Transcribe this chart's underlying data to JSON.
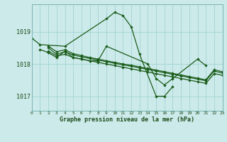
{
  "hours": [
    0,
    1,
    2,
    3,
    4,
    5,
    6,
    7,
    8,
    9,
    10,
    11,
    12,
    13,
    14,
    15,
    16,
    17,
    18,
    19,
    20,
    21,
    22,
    23
  ],
  "line1": [
    1018.8,
    1018.6,
    null,
    null,
    1018.55,
    null,
    null,
    null,
    null,
    1019.4,
    1019.6,
    1019.5,
    1019.15,
    1018.3,
    null,
    1017.0,
    1017.0,
    1017.3,
    null,
    null,
    null,
    null,
    null,
    null
  ],
  "line2": [
    null,
    1018.45,
    1018.35,
    1018.2,
    1018.4,
    1018.2,
    1018.15,
    1018.1,
    1018.1,
    1018.55,
    null,
    null,
    null,
    null,
    1018.0,
    1017.55,
    1017.35,
    1017.55,
    null,
    null,
    1018.15,
    1017.95,
    null,
    null
  ],
  "line3": [
    null,
    null,
    1018.4,
    1018.25,
    1018.3,
    1018.2,
    1018.15,
    1018.1,
    1018.05,
    1018.0,
    1017.95,
    1017.9,
    1017.85,
    1017.8,
    1017.75,
    1017.7,
    1017.65,
    1017.6,
    1017.55,
    1017.5,
    1017.45,
    1017.4,
    1017.7,
    1017.65
  ],
  "line4": [
    null,
    null,
    1018.5,
    1018.3,
    1018.38,
    1018.28,
    1018.22,
    1018.17,
    1018.12,
    1018.07,
    1018.02,
    1017.97,
    1017.93,
    1017.88,
    1017.83,
    1017.78,
    1017.73,
    1017.68,
    1017.63,
    1017.58,
    1017.53,
    1017.48,
    1017.78,
    1017.72
  ],
  "line5": [
    null,
    null,
    1018.55,
    1018.38,
    1018.44,
    1018.32,
    1018.26,
    1018.2,
    1018.15,
    1018.1,
    1018.05,
    1018.0,
    1017.96,
    1017.91,
    1017.86,
    1017.81,
    1017.76,
    1017.71,
    1017.66,
    1017.61,
    1017.56,
    1017.51,
    1017.82,
    1017.76
  ],
  "line_color": "#1a5c1a",
  "bg_color": "#cdeaea",
  "grid_color": "#a0d4d4",
  "xlabel": "Graphe pression niveau de la mer (hPa)",
  "yticks": [
    1017,
    1018,
    1019
  ],
  "ylim": [
    1016.55,
    1019.85
  ],
  "xlim": [
    0,
    23
  ],
  "label_color": "#1a4c1a"
}
